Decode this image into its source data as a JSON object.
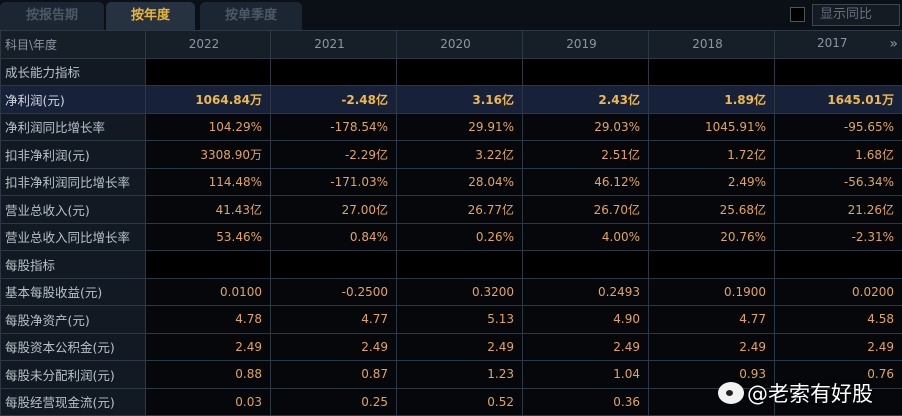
{
  "tabs": [
    {
      "label": "按报告期",
      "active": false
    },
    {
      "label": "按年度",
      "active": true
    },
    {
      "label": "按单季度",
      "active": false
    }
  ],
  "show_yoy_label": "显示同比",
  "header": {
    "label": "科目\\年度",
    "years": [
      "2022",
      "2021",
      "2020",
      "2019",
      "2018",
      "2017"
    ],
    "more_icon": "double-chevron-right"
  },
  "rows": [
    {
      "label": "成长能力指标",
      "type": "section",
      "values": [
        "",
        "",
        "",
        "",
        "",
        ""
      ]
    },
    {
      "label": "净利润(元)",
      "type": "highlight",
      "values": [
        "1064.84万",
        "-2.48亿",
        "3.16亿",
        "2.43亿",
        "1.89亿",
        "1645.01万"
      ]
    },
    {
      "label": "净利润同比增长率",
      "values": [
        "104.29%",
        "-178.54%",
        "29.91%",
        "29.03%",
        "1045.91%",
        "-95.65%"
      ]
    },
    {
      "label": "扣非净利润(元)",
      "values": [
        "3308.90万",
        "-2.29亿",
        "3.22亿",
        "2.51亿",
        "1.72亿",
        "1.68亿"
      ]
    },
    {
      "label": "扣非净利润同比增长率",
      "values": [
        "114.48%",
        "-171.03%",
        "28.04%",
        "46.12%",
        "2.49%",
        "-56.34%"
      ]
    },
    {
      "label": "营业总收入(元)",
      "values": [
        "41.43亿",
        "27.00亿",
        "26.77亿",
        "26.70亿",
        "25.68亿",
        "21.26亿"
      ]
    },
    {
      "label": "营业总收入同比增长率",
      "values": [
        "53.46%",
        "0.84%",
        "0.26%",
        "4.00%",
        "20.76%",
        "-2.31%"
      ]
    },
    {
      "label": "每股指标",
      "type": "section",
      "values": [
        "",
        "",
        "",
        "",
        "",
        ""
      ]
    },
    {
      "label": "基本每股收益(元)",
      "values": [
        "0.0100",
        "-0.2500",
        "0.3200",
        "0.2493",
        "0.1900",
        "0.0200"
      ]
    },
    {
      "label": "每股净资产(元)",
      "values": [
        "4.78",
        "4.77",
        "5.13",
        "4.90",
        "4.77",
        "4.58"
      ]
    },
    {
      "label": "每股资本公积金(元)",
      "values": [
        "2.49",
        "2.49",
        "2.49",
        "2.49",
        "2.49",
        "2.49"
      ]
    },
    {
      "label": "每股未分配利润(元)",
      "values": [
        "0.88",
        "0.87",
        "1.23",
        "1.04",
        "0.93",
        "0.76"
      ]
    },
    {
      "label": "每股经营现金流(元)",
      "values": [
        "0.03",
        "0.25",
        "0.52",
        "0.36",
        "",
        ""
      ]
    }
  ],
  "watermark": "@老索有好股",
  "colors": {
    "value": "#e3a55a",
    "highlight": "#f0b84a",
    "active_tab": "#e8b53a"
  }
}
